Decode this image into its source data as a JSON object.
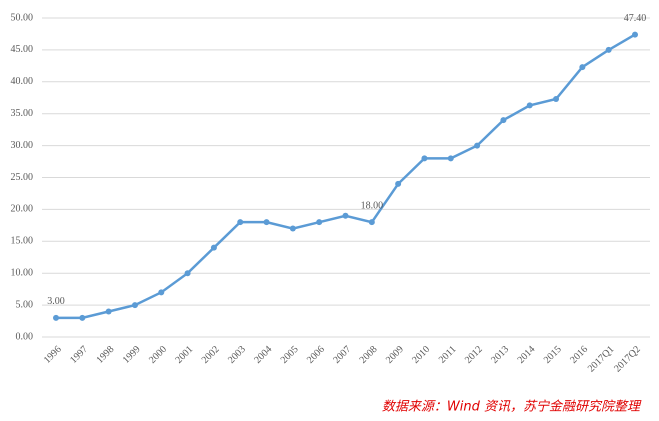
{
  "chart_data": {
    "type": "line",
    "categories": [
      "1996",
      "1997",
      "1998",
      "1999",
      "2000",
      "2001",
      "2002",
      "2003",
      "2004",
      "2005",
      "2006",
      "2007",
      "2008",
      "2009",
      "2010",
      "2011",
      "2012",
      "2013",
      "2014",
      "2015",
      "2016",
      "2017Q1",
      "2017Q2"
    ],
    "values": [
      3.0,
      3.0,
      4.0,
      5.0,
      7.0,
      10.0,
      14.0,
      18.0,
      18.0,
      17.0,
      18.0,
      19.0,
      18.0,
      24.0,
      28.0,
      28.0,
      30.0,
      34.0,
      36.3,
      37.3,
      42.3,
      45.0,
      47.4
    ],
    "value_labels": [
      "3.00",
      null,
      null,
      null,
      null,
      null,
      null,
      null,
      null,
      null,
      null,
      null,
      "18.00",
      null,
      null,
      null,
      null,
      null,
      null,
      null,
      null,
      null,
      "47.40"
    ],
    "color": "#5b9bd5",
    "ylim": [
      0,
      50
    ],
    "yticks": [
      {
        "value": 0,
        "label": "0.00"
      },
      {
        "value": 5,
        "label": "5.00"
      },
      {
        "value": 10,
        "label": "10.00"
      },
      {
        "value": 15,
        "label": "15.00"
      },
      {
        "value": 20,
        "label": "20.00"
      },
      {
        "value": 25,
        "label": "25.00"
      },
      {
        "value": 30,
        "label": "30.00"
      },
      {
        "value": 35,
        "label": "35.00"
      },
      {
        "value": 40,
        "label": "40.00"
      },
      {
        "value": 45,
        "label": "45.00"
      },
      {
        "value": 50,
        "label": "50.00"
      }
    ],
    "grid": true,
    "source": "数据来源：Wind 资讯，苏宁金融研究院整理"
  }
}
